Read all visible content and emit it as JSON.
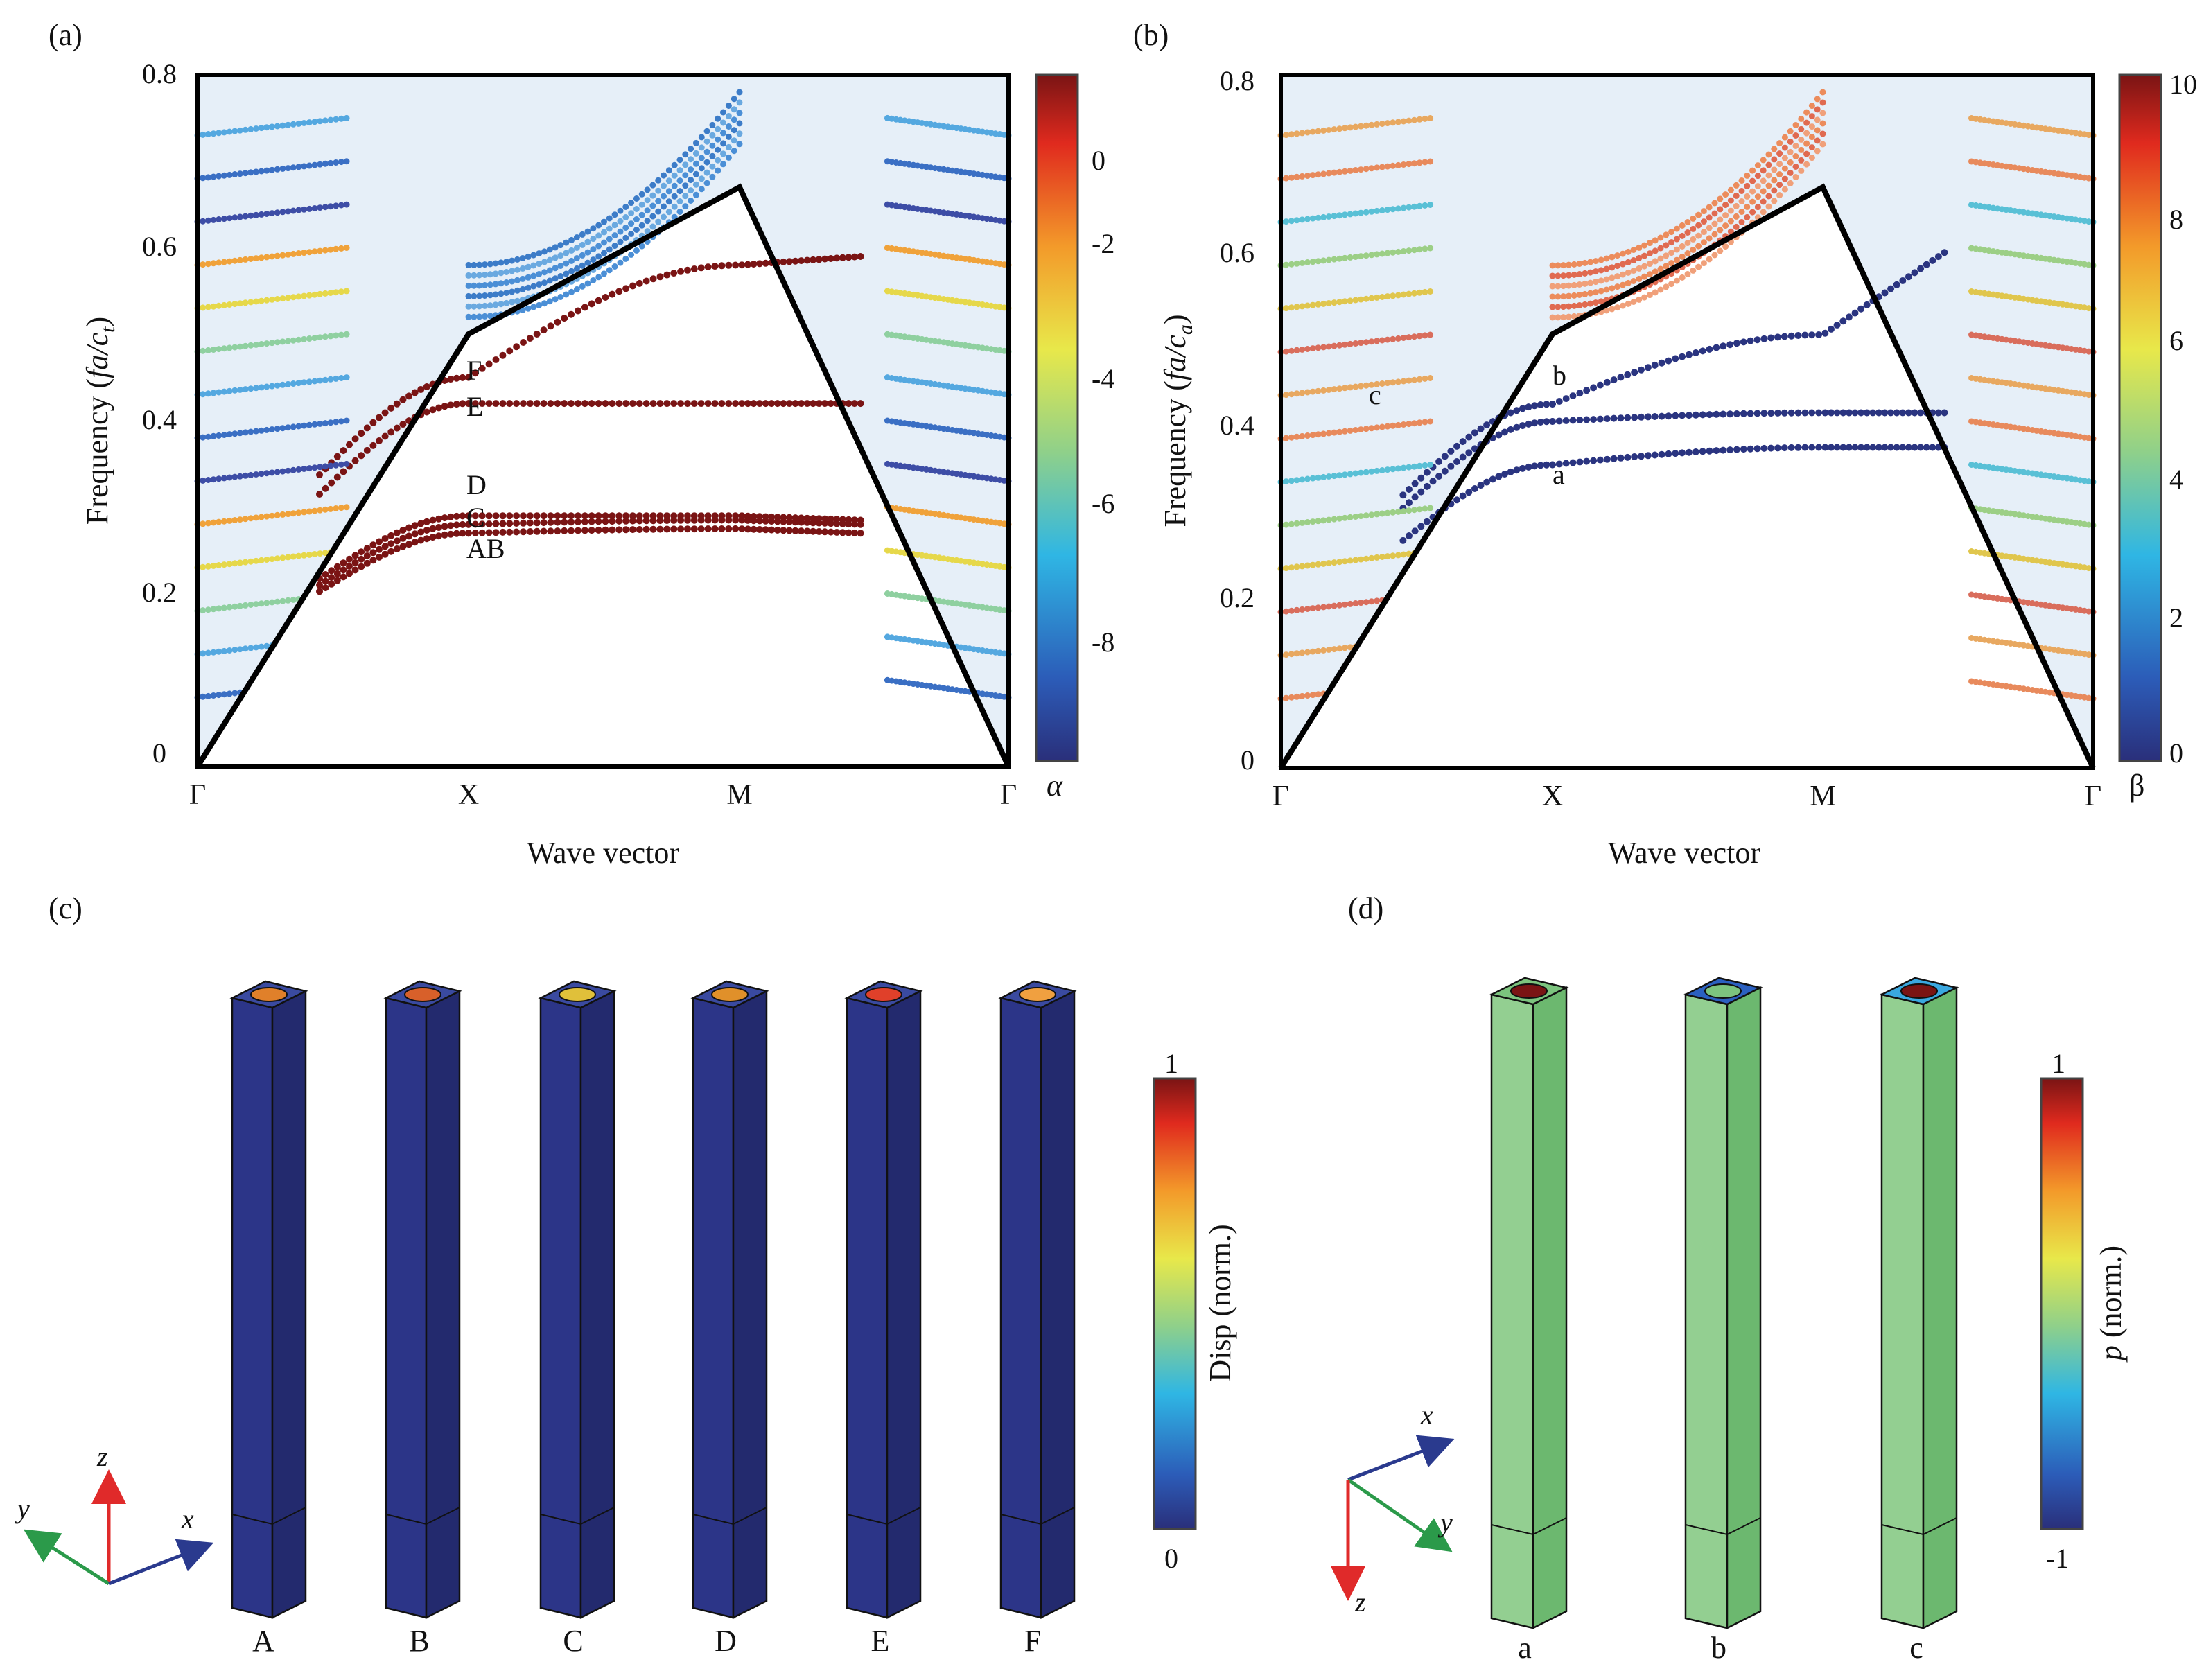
{
  "panels": {
    "a": {
      "label": "(a)",
      "ylabel_prefix": "Frequency (",
      "ylabel_italic": "fa/c",
      "ylabel_sub": "t",
      "ylabel_suffix": ")",
      "xlabel": "Wave vector",
      "colorbar_symbol": "α",
      "colorbar_ticks": [
        "0",
        "-2",
        "-4",
        "-6",
        "-8"
      ],
      "mode_labels": [
        "F",
        "E",
        "D",
        "C",
        "AB"
      ]
    },
    "b": {
      "label": "(b)",
      "ylabel_prefix": "Frequency (",
      "ylabel_italic": "fa/c",
      "ylabel_sub": "a",
      "ylabel_suffix": ")",
      "xlabel": "Wave vector",
      "colorbar_symbol": "β",
      "colorbar_ticks": [
        "10",
        "8",
        "6",
        "4",
        "2",
        "0"
      ],
      "mode_labels": [
        "c",
        "b",
        "a"
      ]
    },
    "c": {
      "label": "(c)",
      "colorbar_title": "Disp (norm.)",
      "colorbar_max": "1",
      "colorbar_min": "0",
      "axes": [
        "z",
        "y",
        "x"
      ],
      "column_labels": [
        "A",
        "B",
        "C",
        "D",
        "E",
        "F"
      ]
    },
    "d": {
      "label": "(d)",
      "colorbar_title_italic": "p",
      "colorbar_title_rest": " (norm.)",
      "colorbar_max": "1",
      "colorbar_min": "-1",
      "axes": [
        "x",
        "y",
        "z"
      ],
      "column_labels": [
        "a",
        "b",
        "c"
      ]
    }
  },
  "colors": {
    "deep_red": "#7a1414",
    "light_bg": "#e6eff8",
    "bar_blue": "#2e3a84",
    "column_green": "#86c987"
  },
  "chart_data": [
    {
      "type": "scatter",
      "title": "(a)",
      "xlabel": "Wave vector",
      "ylabel": "Frequency (fa/c_t)",
      "x_ticks": [
        "Γ",
        "X",
        "M",
        "Γ"
      ],
      "y_ticks": [
        "0",
        "0.2",
        "0.4",
        "0.6",
        "0.8"
      ],
      "ylim": [
        0,
        0.8
      ],
      "colorbar": {
        "label": "α",
        "range": [
          -9.5,
          0.5
        ],
        "ticks": [
          0,
          -2,
          -4,
          -6,
          -8
        ]
      },
      "light_line": [
        {
          "x": "Γ",
          "y": 0
        },
        {
          "x": "X",
          "y": 0.5
        },
        {
          "x": "M",
          "y": 0.707
        },
        {
          "x": "Γ",
          "y": 0
        }
      ],
      "series": [
        {
          "name": "AB",
          "values": [
            0.27,
            0.275,
            0.275,
            0.27
          ],
          "x_points": [
            "X",
            "X-M",
            "M",
            "M-Γ"
          ]
        },
        {
          "name": "C",
          "values": [
            0.28,
            0.285,
            0.285,
            0.28
          ]
        },
        {
          "name": "D",
          "values": [
            0.29,
            0.29,
            0.29,
            0.285
          ]
        },
        {
          "name": "E",
          "values": [
            0.42,
            0.42,
            0.42,
            0.42
          ]
        },
        {
          "name": "F",
          "values": [
            0.45,
            0.5,
            0.58,
            0.59
          ]
        }
      ],
      "annotations": [
        "F",
        "E",
        "D",
        "C",
        "AB"
      ]
    },
    {
      "type": "scatter",
      "title": "(b)",
      "xlabel": "Wave vector",
      "ylabel": "Frequency (fa/c_a)",
      "x_ticks": [
        "Γ",
        "X",
        "M",
        "Γ"
      ],
      "y_ticks": [
        "0",
        "0.2",
        "0.4",
        "0.6",
        "0.8"
      ],
      "ylim": [
        0,
        0.8
      ],
      "colorbar": {
        "label": "β",
        "range": [
          0,
          10
        ],
        "ticks": [
          10,
          8,
          6,
          4,
          2,
          0
        ]
      },
      "light_line": [
        {
          "x": "Γ",
          "y": 0
        },
        {
          "x": "X",
          "y": 0.5
        },
        {
          "x": "M",
          "y": 0.707
        },
        {
          "x": "Γ",
          "y": 0
        }
      ],
      "series": [
        {
          "name": "a",
          "values": [
            0.35,
            0.36,
            0.37,
            0.37
          ]
        },
        {
          "name": "b",
          "values": [
            0.42,
            0.43,
            0.5,
            0.595
          ]
        },
        {
          "name": "c",
          "values": [
            0.4,
            0.405,
            0.41,
            0.41
          ]
        }
      ],
      "annotations": [
        "c",
        "b",
        "a"
      ]
    }
  ]
}
